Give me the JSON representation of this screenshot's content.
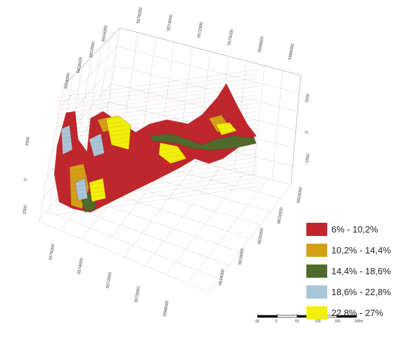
{
  "chart_data": {
    "type": "3d-voxel",
    "title": "",
    "legend": {
      "placement": "bottom-right",
      "entries": [
        {
          "label": "6% - 10,2%",
          "color": "#c0272d"
        },
        {
          "label": "10,2% - 14,4%",
          "color": "#d4a017"
        },
        {
          "label": "14,4% - 18,6%",
          "color": "#4e6b2c"
        },
        {
          "label": "18,6% - 22,8%",
          "color": "#a9c6d8"
        },
        {
          "label": "22,8% - 27%",
          "color": "#f2ef0a"
        }
      ]
    },
    "axes": {
      "top_ticks": [
        "5576000",
        "5574000",
        "5572000",
        "5570000",
        "5568000",
        "5566000"
      ],
      "left_top_ticks": [
        "6624000",
        "6622000",
        "6620000",
        "6618000"
      ],
      "z_left_ticks": [
        "1500",
        "0",
        "-1500"
      ],
      "z_right_ticks": [
        "1500",
        "0",
        "-1500"
      ],
      "right_ticks": [
        "6624000",
        "6622000",
        "6620000",
        "6618000",
        "6616000"
      ],
      "bottom_ticks": [
        "5576000",
        "5574000",
        "5572000",
        "5570000",
        "5568000"
      ],
      "grid": true
    },
    "scale_bar": {
      "labels": [
        "50",
        "0",
        "50",
        "100",
        "150",
        "200m"
      ]
    }
  }
}
